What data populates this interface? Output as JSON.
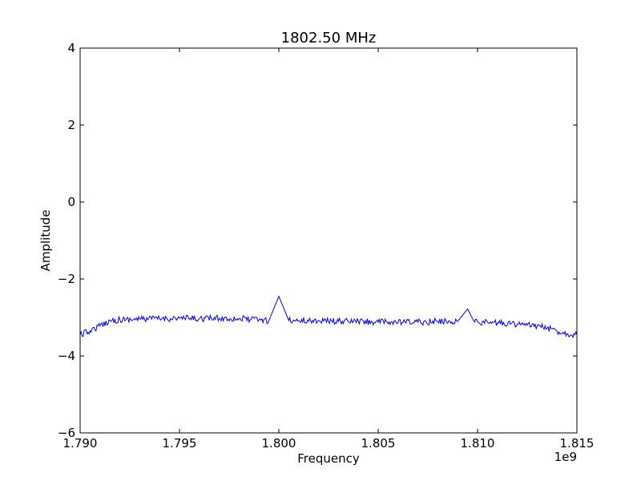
{
  "chart_data": {
    "type": "line",
    "title": "1802.50 MHz",
    "xlabel": "Frequency",
    "ylabel": "Amplitude",
    "x_offset_label": "1e9",
    "xlim": [
      1.79,
      1.815
    ],
    "ylim": [
      -6,
      4
    ],
    "x_ticks": [
      1.79,
      1.795,
      1.8,
      1.805,
      1.81,
      1.815
    ],
    "x_tick_labels": [
      "1.790",
      "1.795",
      "1.800",
      "1.805",
      "1.810",
      "1.815"
    ],
    "y_ticks": [
      -6,
      -4,
      -2,
      0,
      2,
      4
    ],
    "y_tick_labels": [
      "−6",
      "−4",
      "−2",
      "0",
      "2",
      "4"
    ],
    "grid": false,
    "legend": "none",
    "series": [
      {
        "color": "#0000ff",
        "x": [
          1.79,
          1.7905,
          1.791,
          1.7915,
          1.792,
          1.793,
          1.794,
          1.795,
          1.796,
          1.797,
          1.798,
          1.799,
          1.7995,
          1.8,
          1.8005,
          1.801,
          1.802,
          1.803,
          1.804,
          1.805,
          1.806,
          1.807,
          1.808,
          1.809,
          1.8095,
          1.8098,
          1.81,
          1.811,
          1.812,
          1.8125,
          1.813,
          1.8135,
          1.814,
          1.8145,
          1.815
        ],
        "y": [
          -3.45,
          -3.35,
          -3.22,
          -3.08,
          -3.06,
          -3.04,
          -3.03,
          -3.02,
          -3.03,
          -3.02,
          -3.03,
          -3.06,
          -3.08,
          -2.45,
          -3.08,
          -3.08,
          -3.08,
          -3.1,
          -3.1,
          -3.12,
          -3.13,
          -3.12,
          -3.1,
          -3.1,
          -2.78,
          -3.08,
          -3.12,
          -3.14,
          -3.17,
          -3.2,
          -3.22,
          -3.28,
          -3.35,
          -3.42,
          -3.45
        ]
      }
    ]
  },
  "colors": {
    "line": "#0000ff",
    "axes": "#000000",
    "background": "#ffffff"
  }
}
